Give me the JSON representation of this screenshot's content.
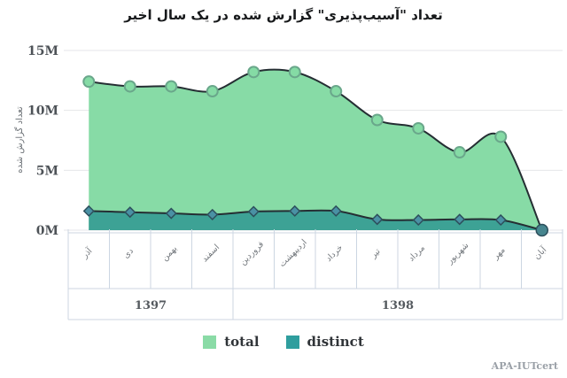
{
  "title": "تعداد \"آسیب‌پذیری\" گزارش شده در یک سال اخیر",
  "watermark": "APA-IUTcert",
  "chart_data": {
    "type": "area",
    "title": "تعداد \"آسیب‌پذیری\" گزارش شده در یک سال اخیر",
    "xlabel": "",
    "ylabel": "تعداد گزارش شده",
    "unit": "millions",
    "ylim": [
      0,
      15
    ],
    "yticks": [
      "0M",
      "5M",
      "10M",
      "15M"
    ],
    "grid": "horizontal",
    "legend_position": "bottom",
    "categories": [
      "آذر",
      "دی",
      "بهمن",
      "اسفند",
      "فروردین",
      "اردیبهشت",
      "خرداد",
      "تیر",
      "مرداد",
      "شهریور",
      "مهر",
      "آبان"
    ],
    "year_groups": [
      {
        "label": "1397",
        "span": 4
      },
      {
        "label": "1398",
        "span": 8
      }
    ],
    "series": [
      {
        "name": "total",
        "color": "#8adba6",
        "area_color": "#87dba6",
        "marker": "circle",
        "marker_color": "#85dba5",
        "marker_stroke": "#6aa78b",
        "values": [
          12.4,
          12.0,
          12.0,
          11.6,
          13.2,
          13.2,
          11.6,
          9.2,
          8.5,
          6.5,
          7.8,
          0
        ]
      },
      {
        "name": "distinct",
        "color": "#2f9e9e",
        "area_color": "#3da295",
        "marker": "diamond",
        "marker_color": "#4a91a4",
        "marker_stroke": "#2d4f5c",
        "values": [
          1.6,
          1.5,
          1.4,
          1.3,
          1.55,
          1.6,
          1.6,
          0.9,
          0.85,
          0.9,
          0.85,
          0
        ]
      }
    ],
    "colors": {
      "line": "#252e33",
      "grid": "#e4e6e8",
      "table_border": "#ccd6e2",
      "final_dot": "#46858e",
      "axis_text": "#4d5257",
      "month_text": "#73787d",
      "year_text": "#555a5f"
    }
  }
}
